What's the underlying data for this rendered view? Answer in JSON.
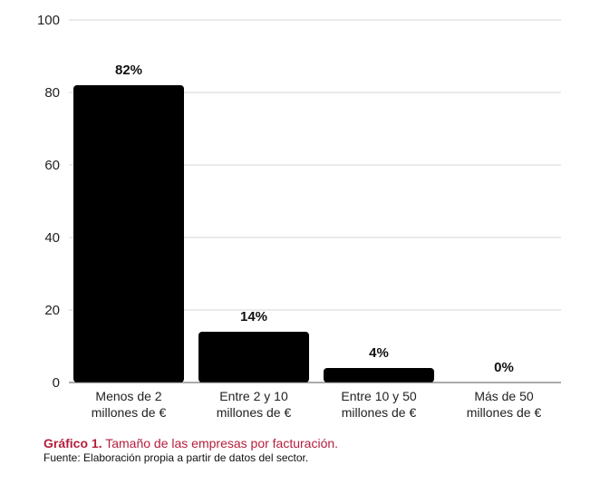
{
  "chart_data": {
    "type": "bar",
    "categories": [
      [
        "Menos de 2",
        "millones de €"
      ],
      [
        "Entre 2 y 10",
        "millones de €"
      ],
      [
        "Entre 10 y 50",
        "millones de €"
      ],
      [
        "Más de 50",
        "millones de €"
      ]
    ],
    "values": [
      82,
      14,
      4,
      0
    ],
    "data_labels": [
      "82%",
      "14%",
      "4%",
      "0%"
    ],
    "ylim": [
      0,
      100
    ],
    "yticks": [
      0,
      20,
      40,
      60,
      80,
      100
    ],
    "grid": "horizontal",
    "title": "",
    "xlabel": "",
    "ylabel": "",
    "legend": "none"
  },
  "caption": {
    "prefix": "Gráfico 1.",
    "text": " Tamaño de las empresas por facturación.",
    "source": "Fuente: Elaboración propia a partir de datos del sector."
  },
  "colors": {
    "bar": "#000000",
    "grid": "#d6d6d6",
    "axis": "#555555",
    "caption_accent": "#b41e3c"
  }
}
